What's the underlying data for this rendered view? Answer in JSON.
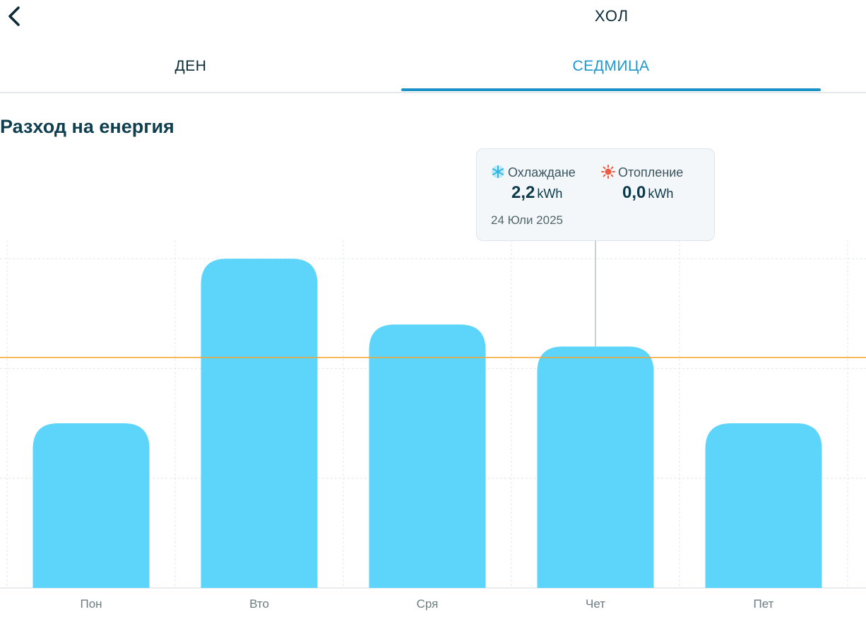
{
  "header": {
    "title": "ХОЛ",
    "back_icon": "chevron-left-icon"
  },
  "tabs": [
    {
      "label": "ДЕН",
      "active": false
    },
    {
      "label": "СЕДМИЦА",
      "active": true
    }
  ],
  "section": {
    "title": "Разход на енергия"
  },
  "tooltip": {
    "cooling": {
      "label": "Охлаждане",
      "value": "2,2",
      "unit": "kWh",
      "icon": "snowflake-icon",
      "color": "#5ccff2"
    },
    "heating": {
      "label": "Отопление",
      "value": "0,0",
      "unit": "kWh",
      "icon": "sun-icon",
      "color": "#ef5b41"
    },
    "date": "24 Юли 2025"
  },
  "colors": {
    "accent": "#1b98cf",
    "bar": "#5dd5fb",
    "average_line": "#f5a32a",
    "text_dark": "#0f3f4f"
  },
  "chart_data": {
    "type": "bar",
    "categories": [
      "Пон",
      "Вто",
      "Сря",
      "Чет",
      "Пет"
    ],
    "values": [
      1.5,
      3.0,
      2.4,
      2.2,
      1.5
    ],
    "ylim": [
      0,
      3.4
    ],
    "average_line": 2.1,
    "selected_category": "Чет",
    "grid": true,
    "axis_labels_visible": false
  }
}
